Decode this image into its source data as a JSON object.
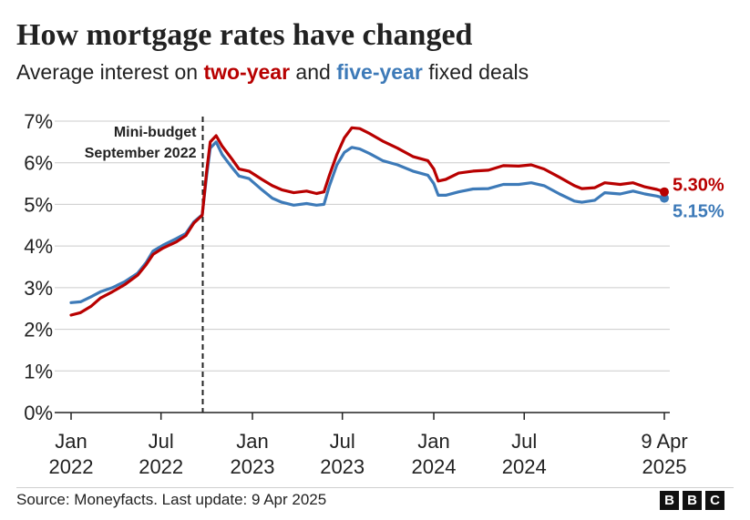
{
  "title": "How mortgage rates have changed",
  "subtitle": {
    "prefix": "Average interest on ",
    "two_year": "two-year",
    "middle": " and ",
    "five_year": "five-year",
    "suffix": " fixed deals"
  },
  "footer": {
    "source": "Source: Moneyfacts. Last update: 9 Apr 2025",
    "logo_letters": [
      "B",
      "B",
      "C"
    ]
  },
  "colors": {
    "two_year": "#b80000",
    "five_year": "#3d7ab8",
    "grid": "#cccccc",
    "axis": "#222222"
  },
  "chart_data": {
    "type": "line",
    "title": "How mortgage rates have changed",
    "subtitle": "Average interest on two-year and five-year fixed deals",
    "ylim": [
      0,
      7
    ],
    "xlim": [
      "2022-01-01",
      "2025-04-09"
    ],
    "grid": true,
    "yticks": [
      {
        "value": 0,
        "label": "0%"
      },
      {
        "value": 1,
        "label": "1%"
      },
      {
        "value": 2,
        "label": "2%"
      },
      {
        "value": 3,
        "label": "3%"
      },
      {
        "value": 4,
        "label": "4%"
      },
      {
        "value": 5,
        "label": "5%"
      },
      {
        "value": 6,
        "label": "6%"
      },
      {
        "value": 7,
        "label": "7%"
      }
    ],
    "xticks": [
      {
        "date": "2022-01-01",
        "line1": "Jan",
        "line2": "2022"
      },
      {
        "date": "2022-07-01",
        "line1": "Jul",
        "line2": "2022"
      },
      {
        "date": "2023-01-01",
        "line1": "Jan",
        "line2": "2023"
      },
      {
        "date": "2023-07-01",
        "line1": "Jul",
        "line2": "2023"
      },
      {
        "date": "2024-01-01",
        "line1": "Jan",
        "line2": "2024"
      },
      {
        "date": "2024-07-01",
        "line1": "Jul",
        "line2": "2024"
      },
      {
        "date": "2025-04-09",
        "line1": "9 Apr",
        "line2": "2025"
      }
    ],
    "annotation": {
      "date": "2022-09-23",
      "line1": "Mini-budget",
      "line2": "September 2022"
    },
    "series": [
      {
        "name": "two-year",
        "end_label": "5.30%",
        "points": [
          [
            "2022-01-01",
            2.34
          ],
          [
            "2022-01-20",
            2.4
          ],
          [
            "2022-02-10",
            2.55
          ],
          [
            "2022-03-01",
            2.75
          ],
          [
            "2022-03-25",
            2.9
          ],
          [
            "2022-04-20",
            3.08
          ],
          [
            "2022-05-15",
            3.3
          ],
          [
            "2022-06-01",
            3.55
          ],
          [
            "2022-06-15",
            3.8
          ],
          [
            "2022-07-05",
            3.95
          ],
          [
            "2022-08-01",
            4.1
          ],
          [
            "2022-08-20",
            4.25
          ],
          [
            "2022-09-05",
            4.55
          ],
          [
            "2022-09-22",
            4.74
          ],
          [
            "2022-10-01",
            5.8
          ],
          [
            "2022-10-08",
            6.5
          ],
          [
            "2022-10-20",
            6.65
          ],
          [
            "2022-11-01",
            6.4
          ],
          [
            "2022-11-20",
            6.1
          ],
          [
            "2022-12-05",
            5.85
          ],
          [
            "2022-12-25",
            5.8
          ],
          [
            "2023-01-20",
            5.6
          ],
          [
            "2023-02-10",
            5.45
          ],
          [
            "2023-03-01",
            5.35
          ],
          [
            "2023-03-25",
            5.28
          ],
          [
            "2023-04-20",
            5.32
          ],
          [
            "2023-05-10",
            5.26
          ],
          [
            "2023-05-25",
            5.3
          ],
          [
            "2023-06-05",
            5.7
          ],
          [
            "2023-06-20",
            6.2
          ],
          [
            "2023-07-05",
            6.6
          ],
          [
            "2023-07-20",
            6.84
          ],
          [
            "2023-08-05",
            6.82
          ],
          [
            "2023-08-25",
            6.7
          ],
          [
            "2023-09-20",
            6.52
          ],
          [
            "2023-10-20",
            6.35
          ],
          [
            "2023-11-20",
            6.15
          ],
          [
            "2023-12-20",
            6.05
          ],
          [
            "2024-01-01",
            5.85
          ],
          [
            "2024-01-10",
            5.56
          ],
          [
            "2024-01-25",
            5.6
          ],
          [
            "2024-02-20",
            5.75
          ],
          [
            "2024-03-20",
            5.8
          ],
          [
            "2024-04-20",
            5.82
          ],
          [
            "2024-05-20",
            5.93
          ],
          [
            "2024-06-20",
            5.92
          ],
          [
            "2024-07-15",
            5.95
          ],
          [
            "2024-08-10",
            5.85
          ],
          [
            "2024-09-10",
            5.65
          ],
          [
            "2024-10-10",
            5.45
          ],
          [
            "2024-10-25",
            5.38
          ],
          [
            "2024-11-20",
            5.4
          ],
          [
            "2024-12-10",
            5.52
          ],
          [
            "2025-01-10",
            5.48
          ],
          [
            "2025-02-05",
            5.52
          ],
          [
            "2025-03-01",
            5.42
          ],
          [
            "2025-03-25",
            5.36
          ],
          [
            "2025-04-09",
            5.3
          ]
        ]
      },
      {
        "name": "five-year",
        "end_label": "5.15%",
        "points": [
          [
            "2022-01-01",
            2.64
          ],
          [
            "2022-01-20",
            2.66
          ],
          [
            "2022-02-10",
            2.78
          ],
          [
            "2022-03-01",
            2.9
          ],
          [
            "2022-03-25",
            3.0
          ],
          [
            "2022-04-20",
            3.15
          ],
          [
            "2022-05-15",
            3.35
          ],
          [
            "2022-06-01",
            3.6
          ],
          [
            "2022-06-15",
            3.88
          ],
          [
            "2022-07-05",
            4.02
          ],
          [
            "2022-08-01",
            4.18
          ],
          [
            "2022-08-20",
            4.3
          ],
          [
            "2022-09-05",
            4.58
          ],
          [
            "2022-09-22",
            4.75
          ],
          [
            "2022-10-01",
            5.7
          ],
          [
            "2022-10-08",
            6.35
          ],
          [
            "2022-10-20",
            6.5
          ],
          [
            "2022-11-01",
            6.2
          ],
          [
            "2022-11-20",
            5.9
          ],
          [
            "2022-12-05",
            5.68
          ],
          [
            "2022-12-25",
            5.62
          ],
          [
            "2023-01-20",
            5.35
          ],
          [
            "2023-02-10",
            5.15
          ],
          [
            "2023-03-01",
            5.05
          ],
          [
            "2023-03-25",
            4.98
          ],
          [
            "2023-04-20",
            5.02
          ],
          [
            "2023-05-10",
            4.98
          ],
          [
            "2023-05-25",
            5.0
          ],
          [
            "2023-06-05",
            5.45
          ],
          [
            "2023-06-20",
            5.95
          ],
          [
            "2023-07-05",
            6.25
          ],
          [
            "2023-07-20",
            6.37
          ],
          [
            "2023-08-05",
            6.33
          ],
          [
            "2023-08-25",
            6.22
          ],
          [
            "2023-09-20",
            6.05
          ],
          [
            "2023-10-20",
            5.95
          ],
          [
            "2023-11-20",
            5.8
          ],
          [
            "2023-12-20",
            5.7
          ],
          [
            "2024-01-01",
            5.5
          ],
          [
            "2024-01-10",
            5.22
          ],
          [
            "2024-01-25",
            5.22
          ],
          [
            "2024-02-20",
            5.3
          ],
          [
            "2024-03-20",
            5.37
          ],
          [
            "2024-04-20",
            5.38
          ],
          [
            "2024-05-20",
            5.48
          ],
          [
            "2024-06-20",
            5.48
          ],
          [
            "2024-07-15",
            5.52
          ],
          [
            "2024-08-10",
            5.45
          ],
          [
            "2024-09-10",
            5.25
          ],
          [
            "2024-10-10",
            5.08
          ],
          [
            "2024-10-25",
            5.05
          ],
          [
            "2024-11-20",
            5.1
          ],
          [
            "2024-12-10",
            5.28
          ],
          [
            "2025-01-10",
            5.25
          ],
          [
            "2025-02-05",
            5.32
          ],
          [
            "2025-03-01",
            5.25
          ],
          [
            "2025-03-25",
            5.2
          ],
          [
            "2025-04-09",
            5.15
          ]
        ]
      }
    ]
  }
}
